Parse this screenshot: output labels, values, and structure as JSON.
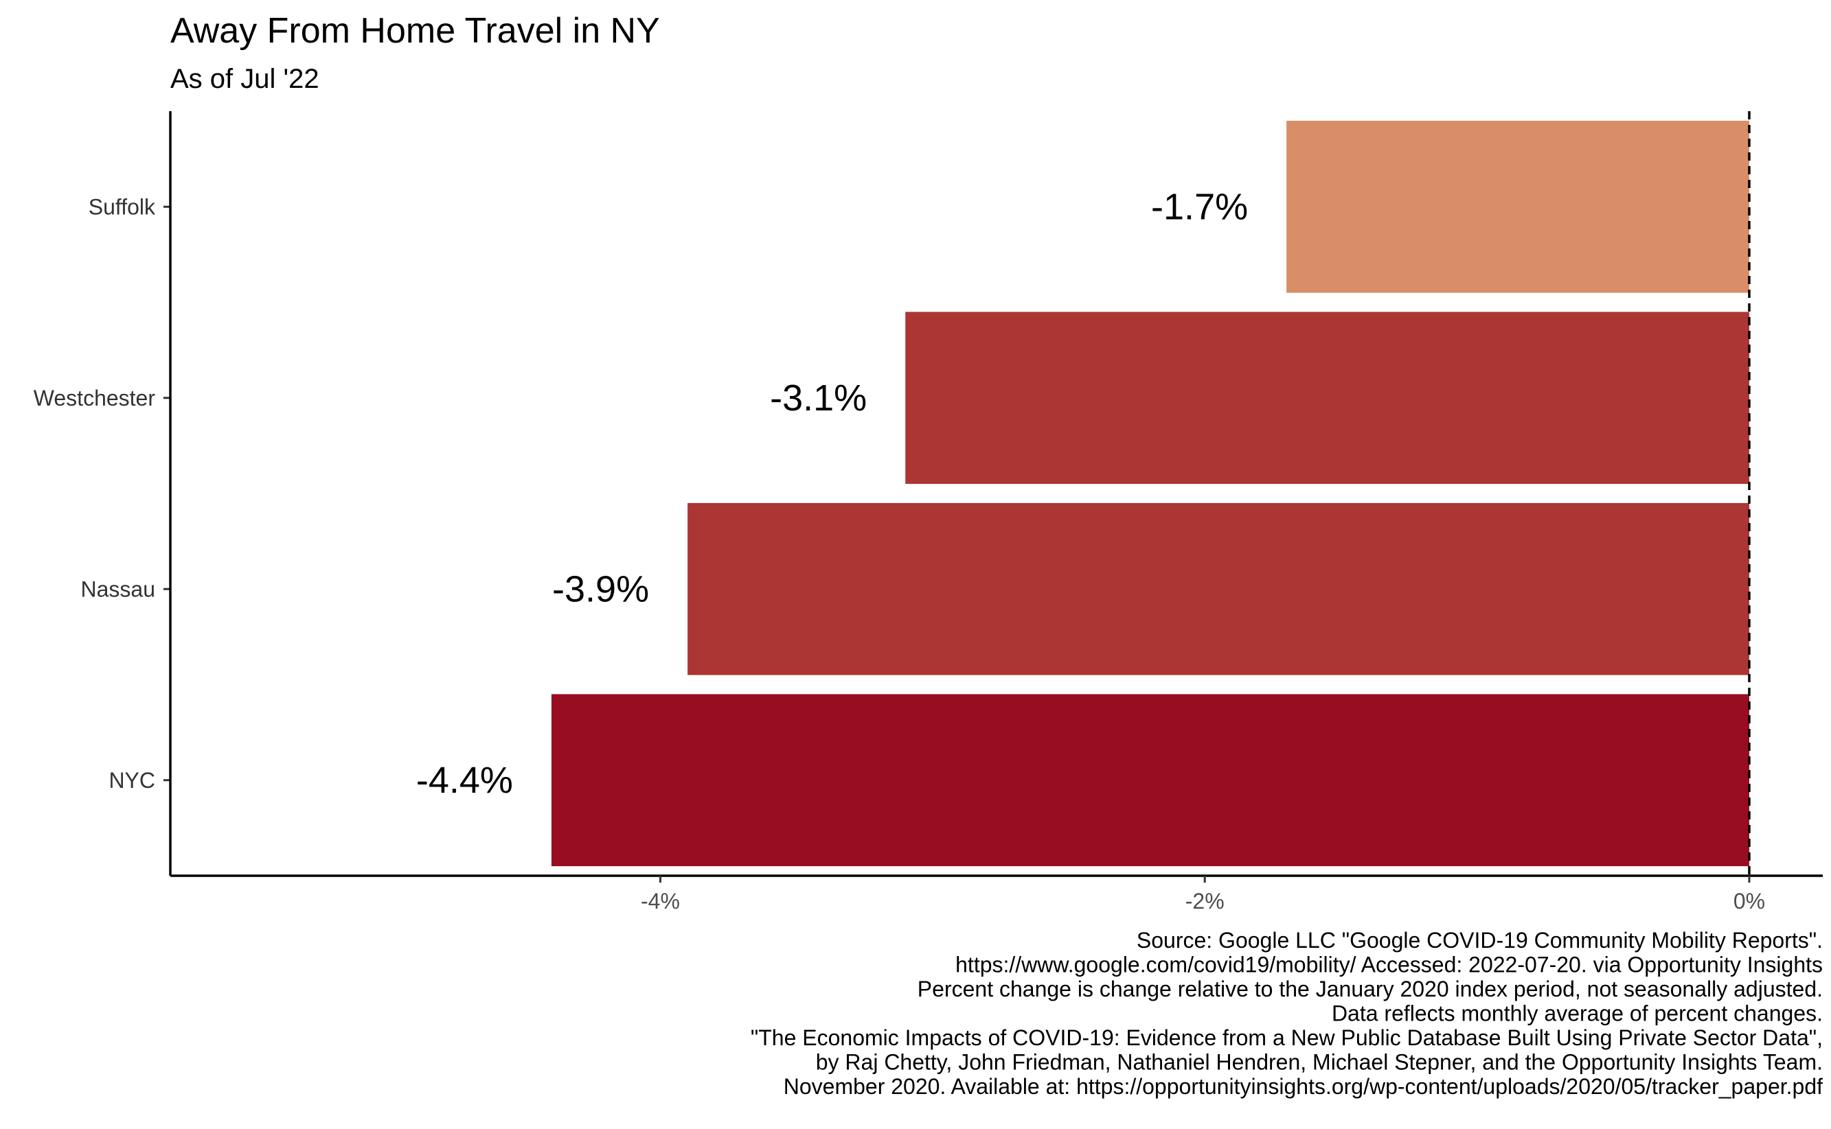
{
  "chart_data": {
    "type": "bar",
    "orientation": "horizontal",
    "title": "Away From Home Travel in NY",
    "subtitle": "As of Jul '22",
    "categories": [
      "Suffolk",
      "Westchester",
      "Nassau",
      "NYC"
    ],
    "values": [
      -1.7,
      -3.1,
      -3.9,
      -4.4
    ],
    "value_labels": [
      "-1.7%",
      "-3.1%",
      "-3.9%",
      "-4.4%"
    ],
    "bar_colors": [
      "#d88e66",
      "#ab3634",
      "#ab3634",
      "#990d22"
    ],
    "xlabel": "",
    "ylabel": "",
    "xlim": [
      -5.8,
      0.27
    ],
    "x_ticks": [
      -4,
      -2,
      0
    ],
    "x_tick_labels": [
      "-4%",
      "-2%",
      "0%"
    ],
    "reference_line": {
      "x": 0,
      "style": "dashed"
    },
    "grid": false,
    "legend": "none",
    "caption_lines": [
      "Source: Google LLC \"Google COVID-19 Community Mobility Reports\".",
      "https://www.google.com/covid19/mobility/ Accessed: 2022-07-20. via Opportunity Insights",
      "Percent change is change relative to the January 2020 index period, not seasonally adjusted.",
      "Data reflects monthly average of percent changes.",
      "\"The Economic Impacts of COVID-19: Evidence from a New Public Database Built Using Private Sector Data\",",
      "by Raj Chetty, John Friedman, Nathaniel Hendren, Michael Stepner, and the Opportunity Insights Team.",
      "November 2020. Available at: https://opportunityinsights.org/wp-content/uploads/2020/05/tracker_paper.pdf"
    ]
  }
}
